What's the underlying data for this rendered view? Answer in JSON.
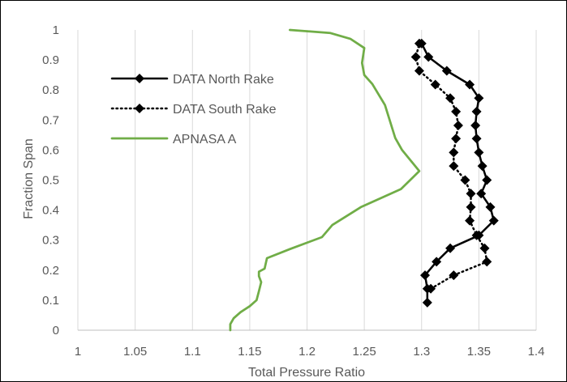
{
  "chart_data": {
    "type": "line",
    "title": "",
    "xlabel": "Total Pressure Ratio",
    "ylabel": "Fraction Span",
    "xlim": [
      1,
      1.4
    ],
    "ylim": [
      0,
      1
    ],
    "x_ticks": [
      "1",
      "1.05",
      "1.1",
      "1.15",
      "1.2",
      "1.25",
      "1.3",
      "1.35",
      "1.4"
    ],
    "y_ticks": [
      "0",
      "0.1",
      "0.2",
      "0.3",
      "0.4",
      "0.5",
      "0.6",
      "0.7",
      "0.8",
      "0.9",
      "1"
    ],
    "grid": "vertical major gridlines",
    "legend_position": "upper-left inside plot",
    "series": [
      {
        "name": "DATA North Rake",
        "color": "#000000",
        "line": "solid",
        "marker": "diamond",
        "points": [
          [
            1.305,
            0.092
          ],
          [
            1.305,
            0.138
          ],
          [
            1.303,
            0.183
          ],
          [
            1.313,
            0.228
          ],
          [
            1.325,
            0.273
          ],
          [
            1.35,
            0.316
          ],
          [
            1.363,
            0.365
          ],
          [
            1.36,
            0.41
          ],
          [
            1.352,
            0.455
          ],
          [
            1.357,
            0.5
          ],
          [
            1.353,
            0.547
          ],
          [
            1.35,
            0.592
          ],
          [
            1.348,
            0.638
          ],
          [
            1.347,
            0.682
          ],
          [
            1.348,
            0.728
          ],
          [
            1.35,
            0.773
          ],
          [
            1.342,
            0.818
          ],
          [
            1.322,
            0.864
          ],
          [
            1.306,
            0.91
          ],
          [
            1.3,
            0.955
          ]
        ]
      },
      {
        "name": "DATA South Rake",
        "color": "#000000",
        "line": "dotted",
        "marker": "diamond",
        "points": [
          [
            1.308,
            0.138
          ],
          [
            1.328,
            0.183
          ],
          [
            1.357,
            0.228
          ],
          [
            1.355,
            0.273
          ],
          [
            1.348,
            0.316
          ],
          [
            1.342,
            0.365
          ],
          [
            1.343,
            0.41
          ],
          [
            1.343,
            0.455
          ],
          [
            1.338,
            0.5
          ],
          [
            1.328,
            0.547
          ],
          [
            1.328,
            0.592
          ],
          [
            1.33,
            0.638
          ],
          [
            1.332,
            0.682
          ],
          [
            1.33,
            0.728
          ],
          [
            1.325,
            0.773
          ],
          [
            1.312,
            0.818
          ],
          [
            1.298,
            0.864
          ],
          [
            1.295,
            0.91
          ],
          [
            1.298,
            0.955
          ]
        ]
      },
      {
        "name": "APNASA A",
        "color": "#70AD47",
        "line": "solid",
        "marker": "none",
        "points": [
          [
            1.133,
            0.0
          ],
          [
            1.133,
            0.02
          ],
          [
            1.136,
            0.04
          ],
          [
            1.142,
            0.06
          ],
          [
            1.15,
            0.08
          ],
          [
            1.156,
            0.1
          ],
          [
            1.158,
            0.13
          ],
          [
            1.16,
            0.16
          ],
          [
            1.158,
            0.18
          ],
          [
            1.158,
            0.195
          ],
          [
            1.163,
            0.205
          ],
          [
            1.165,
            0.24
          ],
          [
            1.185,
            0.27
          ],
          [
            1.213,
            0.31
          ],
          [
            1.222,
            0.35
          ],
          [
            1.247,
            0.41
          ],
          [
            1.282,
            0.47
          ],
          [
            1.298,
            0.53
          ],
          [
            1.283,
            0.6
          ],
          [
            1.277,
            0.64
          ],
          [
            1.268,
            0.75
          ],
          [
            1.257,
            0.82
          ],
          [
            1.25,
            0.85
          ],
          [
            1.248,
            0.89
          ],
          [
            1.25,
            0.94
          ],
          [
            1.238,
            0.97
          ],
          [
            1.22,
            0.99
          ],
          [
            1.185,
            1.0
          ]
        ]
      }
    ]
  }
}
